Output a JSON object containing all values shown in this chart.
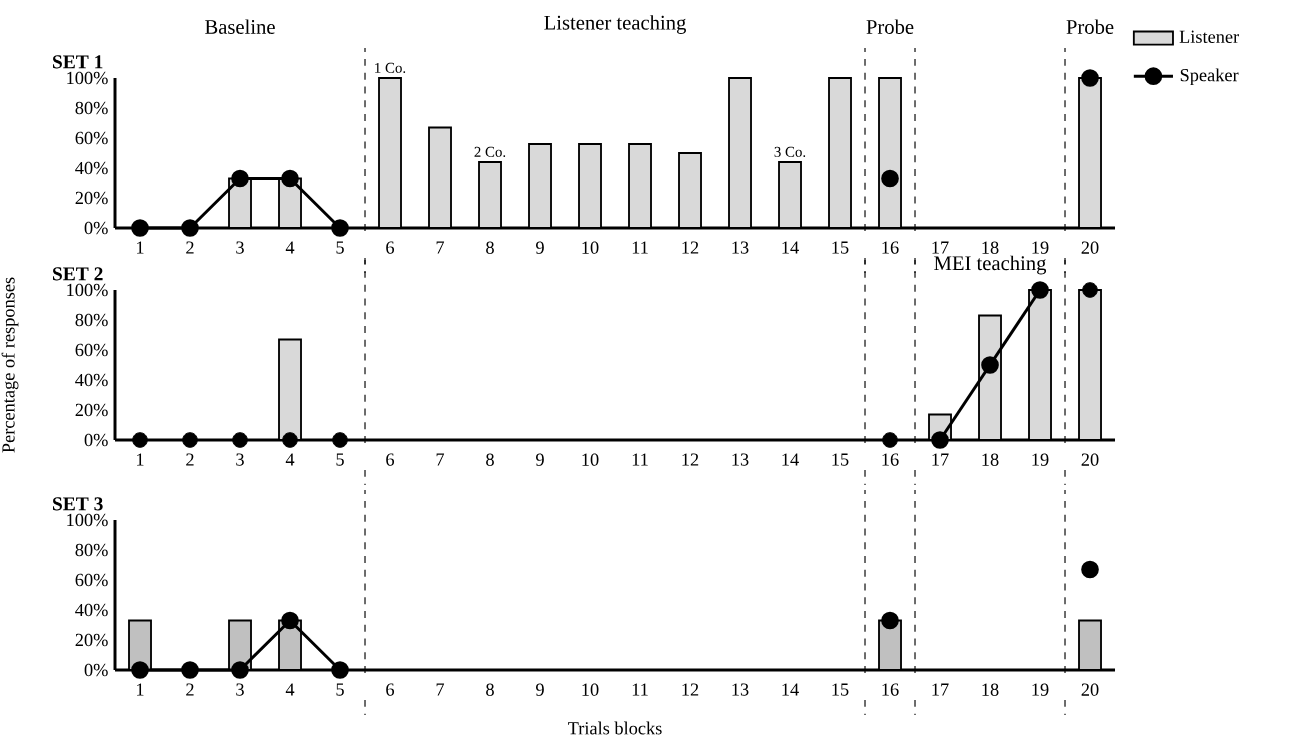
{
  "chart_data": [
    {
      "type": "bar",
      "title": "SET 1",
      "legend": "top right",
      "x": [
        1,
        2,
        3,
        4,
        5,
        6,
        7,
        8,
        9,
        10,
        11,
        12,
        13,
        14,
        15,
        16,
        17,
        18,
        19,
        20
      ],
      "xlim": [
        0.5,
        20.5
      ],
      "xticks": [
        1,
        2,
        3,
        4,
        5,
        6,
        7,
        8,
        9,
        10,
        11,
        12,
        13,
        14,
        15,
        16,
        17,
        18,
        19,
        20
      ],
      "ylim": [
        0,
        100
      ],
      "yticks": [
        {
          "value": 0,
          "label": "0%"
        },
        {
          "value": 20,
          "label": "20%"
        },
        {
          "value": 40,
          "label": "40%"
        },
        {
          "value": 60,
          "label": "60%"
        },
        {
          "value": 80,
          "label": "80%"
        },
        {
          "value": 100,
          "label": "100%"
        }
      ],
      "series": [
        {
          "name": "Listener",
          "color": "#d9d9d9",
          "values": [
            null,
            null,
            33,
            33,
            null,
            100,
            67,
            44,
            56,
            56,
            56,
            50,
            100,
            44,
            100,
            100,
            null,
            null,
            null,
            100
          ]
        },
        {
          "name": "Speaker",
          "type": "line",
          "marker": "circle",
          "color": "#000000",
          "values": [
            0,
            0,
            33,
            33,
            0,
            null,
            null,
            null,
            null,
            null,
            null,
            null,
            null,
            null,
            null,
            33,
            null,
            null,
            null,
            100
          ]
        }
      ],
      "ref_lines": [
        {
          "axis": "x",
          "value": 5.5,
          "line_style": "dashed"
        },
        {
          "axis": "x",
          "value": 15.5,
          "line_style": "dashed"
        },
        {
          "axis": "x",
          "value": 16.5,
          "line_style": "dashed"
        },
        {
          "axis": "x",
          "value": 19.5,
          "line_style": "dashed"
        }
      ],
      "annotations": [
        "Baseline",
        "Listener teaching",
        "Probe",
        "Probe",
        {
          "text": "1 Co.",
          "x": 6,
          "y": 100
        },
        {
          "text": "2 Co.",
          "x": 8,
          "y": 44
        },
        {
          "text": "3 Co.",
          "x": 14,
          "y": 44
        }
      ]
    },
    {
      "type": "bar",
      "title": "SET 2",
      "ylabel": "Percentage of responses",
      "x": [
        1,
        2,
        3,
        4,
        5,
        6,
        7,
        8,
        9,
        10,
        11,
        12,
        13,
        14,
        15,
        16,
        17,
        18,
        19,
        20
      ],
      "xlim": [
        0.5,
        20.5
      ],
      "xticks": [
        1,
        2,
        3,
        4,
        5,
        6,
        7,
        8,
        9,
        10,
        11,
        12,
        13,
        14,
        15,
        16,
        17,
        18,
        19,
        20
      ],
      "ylim": [
        0,
        100
      ],
      "yticks": [
        {
          "value": 0,
          "label": "0%"
        },
        {
          "value": 20,
          "label": "20%"
        },
        {
          "value": 40,
          "label": "40%"
        },
        {
          "value": 60,
          "label": "60%"
        },
        {
          "value": 80,
          "label": "80%"
        },
        {
          "value": 100,
          "label": "100%"
        }
      ],
      "series": [
        {
          "color": "#d9d9d9",
          "values": [
            null,
            null,
            null,
            67,
            null,
            null,
            null,
            null,
            null,
            null,
            null,
            null,
            null,
            null,
            null,
            null,
            17,
            83,
            100,
            100
          ]
        },
        {
          "type": "line",
          "marker": "circle",
          "color": "#000000",
          "values": [
            null,
            null,
            null,
            null,
            null,
            null,
            null,
            null,
            null,
            null,
            null,
            null,
            null,
            null,
            null,
            null,
            0,
            50,
            100,
            null
          ]
        },
        {
          "type": "scatter",
          "marker": "circle",
          "color": "#000000",
          "values": [
            0,
            0,
            0,
            0,
            0,
            null,
            null,
            null,
            null,
            null,
            null,
            null,
            null,
            null,
            null,
            0,
            null,
            null,
            null,
            100
          ]
        }
      ],
      "ref_lines": [
        {
          "axis": "x",
          "value": 5.5,
          "line_style": "dashed"
        },
        {
          "axis": "x",
          "value": 15.5,
          "line_style": "dashed"
        },
        {
          "axis": "x",
          "value": 16.5,
          "line_style": "dashed"
        },
        {
          "axis": "x",
          "value": 19.5,
          "line_style": "dashed"
        }
      ],
      "annotations": [
        "MEI teaching"
      ]
    },
    {
      "type": "bar",
      "title": "SET 3",
      "xlabel": "Trials blocks",
      "x": [
        1,
        2,
        3,
        4,
        5,
        6,
        7,
        8,
        9,
        10,
        11,
        12,
        13,
        14,
        15,
        16,
        17,
        18,
        19,
        20
      ],
      "xlim": [
        0.5,
        20.5
      ],
      "xticks": [
        1,
        2,
        3,
        4,
        5,
        6,
        7,
        8,
        9,
        10,
        11,
        12,
        13,
        14,
        15,
        16,
        17,
        18,
        19,
        20
      ],
      "ylim": [
        0,
        100
      ],
      "yticks": [
        {
          "value": 0,
          "label": "0%"
        },
        {
          "value": 20,
          "label": "20%"
        },
        {
          "value": 40,
          "label": "40%"
        },
        {
          "value": 60,
          "label": "60%"
        },
        {
          "value": 80,
          "label": "80%"
        },
        {
          "value": 100,
          "label": "100%"
        }
      ],
      "series": [
        {
          "color": "#c0c0c0",
          "values": [
            33,
            null,
            33,
            33,
            null,
            null,
            null,
            null,
            null,
            null,
            null,
            null,
            null,
            null,
            null,
            33,
            null,
            null,
            null,
            33
          ]
        },
        {
          "type": "line",
          "marker": "circle",
          "color": "#000000",
          "values": [
            0,
            0,
            0,
            33,
            0,
            null,
            null,
            null,
            null,
            null,
            null,
            null,
            null,
            null,
            null,
            33,
            null,
            null,
            null,
            67
          ]
        }
      ],
      "ref_lines": [
        {
          "axis": "x",
          "value": 5.5,
          "line_style": "dashed"
        },
        {
          "axis": "x",
          "value": 15.5,
          "line_style": "dashed"
        },
        {
          "axis": "x",
          "value": 16.5,
          "line_style": "dashed"
        },
        {
          "axis": "x",
          "value": 19.5,
          "line_style": "dashed"
        }
      ]
    }
  ]
}
